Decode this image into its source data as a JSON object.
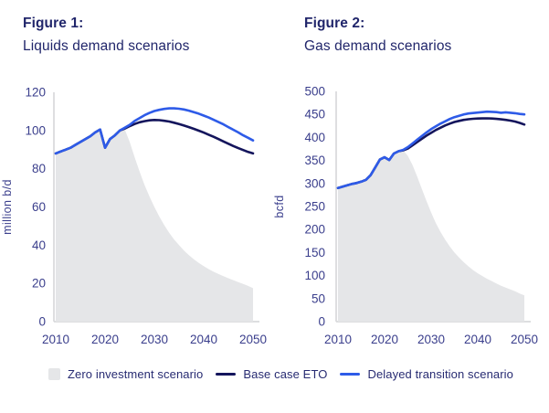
{
  "style": {
    "navy": "#14155c",
    "blue": "#2e5be8",
    "area_fill": "#e5e6e8",
    "axis_line": "#d8d9db",
    "title_text": "#21266b",
    "tick_text": "#3a3e8c",
    "legend_text": "#272b72"
  },
  "legend": {
    "position": "bottom",
    "items": [
      {
        "id": "zero-investment",
        "label": "Zero investment scenario",
        "swatch": "area",
        "color": "#e5e6e8"
      },
      {
        "id": "base-case-eto",
        "label": "Base case ETO",
        "swatch": "line",
        "color": "#14155c"
      },
      {
        "id": "delayed-transition",
        "label": "Delayed transition scenario",
        "swatch": "line",
        "color": "#2e5be8"
      }
    ]
  },
  "chart_data": [
    {
      "type": "line",
      "fig_label": "Figure 1:",
      "title": "Liquids demand scenarios",
      "ylabel": "million b/d",
      "xlabel": "",
      "xlim": [
        2010,
        2050
      ],
      "ylim": [
        0,
        120
      ],
      "x_ticks": [
        2010,
        2020,
        2030,
        2040,
        2050
      ],
      "y_ticks": [
        0,
        20,
        40,
        60,
        80,
        100,
        120
      ],
      "grid": false,
      "x_start": 2010,
      "x_step": 1,
      "series": [
        {
          "id": "zero-investment",
          "name": "Zero investment scenario",
          "type": "area",
          "color": "#e5e6e8",
          "y": [
            88,
            89,
            90,
            91,
            92.5,
            94,
            95.5,
            97,
            99,
            100.5,
            91,
            95.5,
            97.5,
            100,
            100.5,
            94,
            86,
            78.5,
            71.5,
            65.5,
            60,
            55,
            50.5,
            46.5,
            43,
            40,
            37.2,
            34.8,
            32.6,
            30.7,
            29,
            27.5,
            26.1,
            24.9,
            23.8,
            22.7,
            21.7,
            20.7,
            19.7,
            18.7,
            17.5
          ]
        },
        {
          "id": "base-case-eto",
          "name": "Base case ETO",
          "type": "line",
          "color": "#14155c",
          "y": [
            88,
            89,
            90,
            91,
            92.5,
            94,
            95.5,
            97,
            99,
            100.5,
            91,
            95.5,
            97.5,
            100,
            101,
            102.3,
            103.4,
            104.3,
            104.9,
            105.3,
            105.5,
            105.4,
            105.1,
            104.7,
            104.1,
            103.4,
            102.6,
            101.8,
            100.9,
            99.9,
            98.9,
            97.8,
            96.7,
            95.5,
            94.3,
            93.1,
            91.9,
            90.8,
            89.8,
            88.8,
            88
          ]
        },
        {
          "id": "delayed-transition",
          "name": "Delayed transition scenario",
          "type": "line",
          "color": "#2e5be8",
          "y": [
            88,
            89,
            90,
            91,
            92.5,
            94,
            95.5,
            97,
            99,
            100.5,
            91,
            95.5,
            97.5,
            100,
            101.5,
            103,
            105,
            106.5,
            108,
            109.2,
            110.2,
            110.8,
            111.3,
            111.6,
            111.6,
            111.4,
            111,
            110.4,
            109.6,
            108.8,
            107.8,
            106.8,
            105.6,
            104.4,
            103.2,
            101.8,
            100.4,
            99,
            97.5,
            96.2,
            94.8
          ]
        }
      ]
    },
    {
      "type": "line",
      "fig_label": "Figure 2:",
      "title": "Gas demand scenarios",
      "ylabel": "bcfd",
      "xlabel": "",
      "xlim": [
        2010,
        2050
      ],
      "ylim": [
        0,
        500
      ],
      "x_ticks": [
        2010,
        2020,
        2030,
        2040,
        2050
      ],
      "y_ticks": [
        0,
        50,
        100,
        150,
        200,
        250,
        300,
        350,
        400,
        450,
        500
      ],
      "grid": false,
      "x_start": 2010,
      "x_step": 1,
      "series": [
        {
          "id": "zero-investment",
          "name": "Zero investment scenario",
          "type": "area",
          "color": "#e5e6e8",
          "y": [
            290,
            293,
            296,
            299,
            301,
            304,
            308,
            318,
            335,
            352,
            357,
            351,
            365,
            370,
            372,
            360,
            340,
            315,
            288,
            262,
            237,
            214,
            195,
            178,
            163,
            150,
            139,
            129,
            120,
            112,
            105,
            99,
            93,
            88,
            83,
            78,
            74,
            70,
            66,
            61,
            57
          ]
        },
        {
          "id": "base-case-eto",
          "name": "Base case ETO",
          "type": "line",
          "color": "#14155c",
          "y": [
            290,
            293,
            296,
            299,
            301,
            304,
            308,
            318,
            335,
            352,
            357,
            351,
            365,
            370,
            372,
            376,
            383,
            390,
            397,
            404,
            410,
            416,
            421,
            426,
            430,
            433.5,
            436,
            438,
            439.5,
            440.5,
            441,
            441.3,
            441.5,
            441,
            440.3,
            439.3,
            438,
            436.5,
            434.5,
            431.5,
            428
          ]
        },
        {
          "id": "delayed-transition",
          "name": "Delayed transition scenario",
          "type": "line",
          "color": "#2e5be8",
          "y": [
            290,
            293,
            296,
            299,
            301,
            304,
            308,
            318,
            335,
            352,
            357,
            351,
            365,
            370,
            373,
            379,
            387,
            395,
            403,
            411,
            418,
            424,
            430,
            435,
            440,
            444,
            447,
            450,
            452,
            453,
            454,
            455,
            456,
            455.5,
            455,
            453.5,
            454.5,
            453.5,
            452.5,
            451,
            450
          ]
        }
      ]
    }
  ]
}
